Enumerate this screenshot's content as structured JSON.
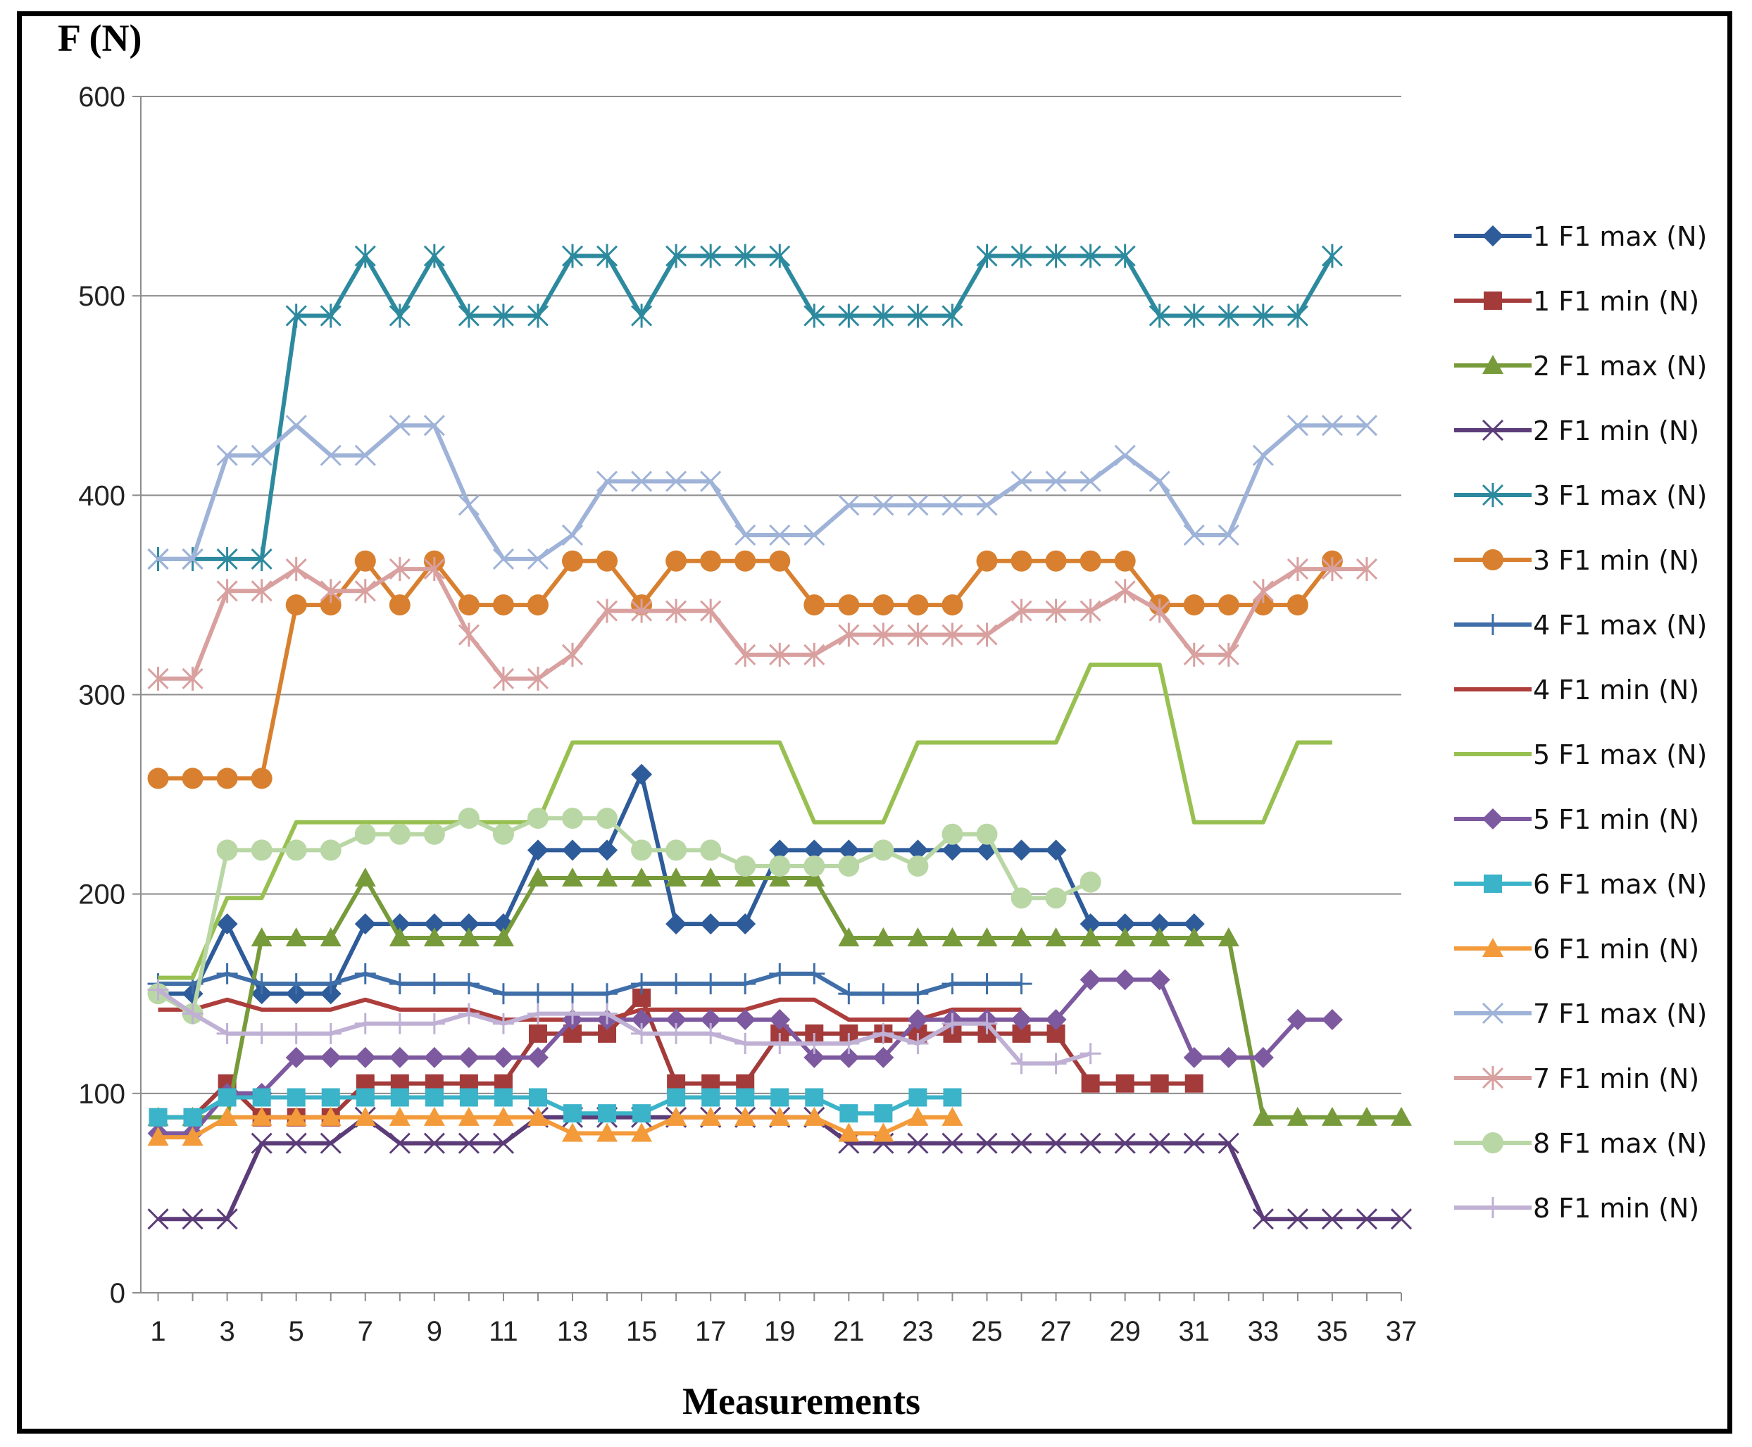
{
  "chart_data": {
    "type": "line",
    "title": "",
    "ylabel": "F (N)",
    "xlabel": "Measurements",
    "ylim": [
      0,
      600
    ],
    "yticks": [
      0,
      100,
      200,
      300,
      400,
      500,
      600
    ],
    "xlim": [
      0.5,
      37
    ],
    "xticks": [
      1,
      3,
      5,
      7,
      9,
      11,
      13,
      15,
      17,
      19,
      21,
      23,
      25,
      27,
      29,
      31,
      33,
      35,
      37
    ],
    "grid": true,
    "legend_position": "right",
    "series": [
      {
        "name": "1 F1 max (N)",
        "color": "#2e5b99",
        "marker": "diamond",
        "values": [
          150,
          150,
          185,
          150,
          150,
          150,
          185,
          185,
          185,
          185,
          185,
          222,
          222,
          222,
          260,
          185,
          185,
          185,
          222,
          222,
          222,
          222,
          222,
          222,
          222,
          222,
          222,
          185,
          185,
          185,
          185
        ]
      },
      {
        "name": "1 F1 min (N)",
        "color": "#a33b3a",
        "marker": "square",
        "values": [
          88,
          88,
          105,
          88,
          88,
          88,
          105,
          105,
          105,
          105,
          105,
          130,
          130,
          130,
          148,
          105,
          105,
          105,
          130,
          130,
          130,
          130,
          130,
          130,
          130,
          130,
          130,
          105,
          105,
          105,
          105
        ]
      },
      {
        "name": "2 F1 max (N)",
        "color": "#779b3a",
        "marker": "triangle",
        "values": [
          88,
          88,
          88,
          178,
          178,
          178,
          208,
          178,
          178,
          178,
          178,
          208,
          208,
          208,
          208,
          208,
          208,
          208,
          208,
          208,
          178,
          178,
          178,
          178,
          178,
          178,
          178,
          178,
          178,
          178,
          178,
          178,
          88,
          88,
          88,
          88,
          88
        ]
      },
      {
        "name": "2 F1 min (N)",
        "color": "#5b3c78",
        "marker": "x",
        "values": [
          37,
          37,
          37,
          75,
          75,
          75,
          88,
          75,
          75,
          75,
          75,
          88,
          88,
          88,
          88,
          88,
          88,
          88,
          88,
          88,
          75,
          75,
          75,
          75,
          75,
          75,
          75,
          75,
          75,
          75,
          75,
          75,
          37,
          37,
          37,
          37,
          37
        ]
      },
      {
        "name": "3 F1 max (N)",
        "color": "#2d8a9e",
        "marker": "asterisk",
        "values": [
          368,
          368,
          368,
          368,
          490,
          490,
          520,
          490,
          520,
          490,
          490,
          490,
          520,
          520,
          490,
          520,
          520,
          520,
          520,
          490,
          490,
          490,
          490,
          490,
          520,
          520,
          520,
          520,
          520,
          490,
          490,
          490,
          490,
          490,
          520
        ]
      },
      {
        "name": "3 F1 min (N)",
        "color": "#d8802f",
        "marker": "circle",
        "values": [
          258,
          258,
          258,
          258,
          345,
          345,
          367,
          345,
          367,
          345,
          345,
          345,
          367,
          367,
          345,
          367,
          367,
          367,
          367,
          345,
          345,
          345,
          345,
          345,
          367,
          367,
          367,
          367,
          367,
          345,
          345,
          345,
          345,
          345,
          367
        ]
      },
      {
        "name": "4 F1 max (N)",
        "color": "#3f6ea8",
        "marker": "plus",
        "values": [
          155,
          155,
          160,
          155,
          155,
          155,
          160,
          155,
          155,
          155,
          150,
          150,
          150,
          150,
          155,
          155,
          155,
          155,
          160,
          160,
          150,
          150,
          150,
          155,
          155,
          155
        ]
      },
      {
        "name": "4 F1 min (N)",
        "color": "#ad3e3c",
        "marker": "dash",
        "values": [
          142,
          142,
          147,
          142,
          142,
          142,
          147,
          142,
          142,
          142,
          137,
          137,
          137,
          137,
          142,
          142,
          142,
          142,
          147,
          147,
          137,
          137,
          137,
          142,
          142,
          142
        ]
      },
      {
        "name": "5 F1 max (N)",
        "color": "#98c050",
        "marker": "dash",
        "values": [
          158,
          158,
          198,
          198,
          236,
          236,
          236,
          236,
          236,
          236,
          236,
          236,
          276,
          276,
          276,
          276,
          276,
          276,
          276,
          236,
          236,
          236,
          276,
          276,
          276,
          276,
          276,
          315,
          315,
          315,
          236,
          236,
          236,
          276,
          276
        ]
      },
      {
        "name": "5 F1 min (N)",
        "color": "#7d59a0",
        "marker": "diamond",
        "values": [
          80,
          80,
          100,
          100,
          118,
          118,
          118,
          118,
          118,
          118,
          118,
          118,
          137,
          137,
          137,
          137,
          137,
          137,
          137,
          118,
          118,
          118,
          137,
          137,
          137,
          137,
          137,
          157,
          157,
          157,
          118,
          118,
          118,
          137,
          137
        ]
      },
      {
        "name": "6 F1 max (N)",
        "color": "#3bb3c9",
        "marker": "square",
        "values": [
          88,
          88,
          98,
          98,
          98,
          98,
          98,
          98,
          98,
          98,
          98,
          98,
          90,
          90,
          90,
          98,
          98,
          98,
          98,
          98,
          90,
          90,
          98,
          98
        ]
      },
      {
        "name": "6 F1 min (N)",
        "color": "#f39a3a",
        "marker": "triangle",
        "values": [
          78,
          78,
          88,
          88,
          88,
          88,
          88,
          88,
          88,
          88,
          88,
          88,
          80,
          80,
          80,
          88,
          88,
          88,
          88,
          88,
          80,
          80,
          88,
          88
        ]
      },
      {
        "name": "7 F1 max (N)",
        "color": "#9fb3d8",
        "marker": "x",
        "values": [
          368,
          368,
          420,
          420,
          435,
          420,
          420,
          435,
          435,
          395,
          368,
          368,
          380,
          407,
          407,
          407,
          407,
          380,
          380,
          380,
          395,
          395,
          395,
          395,
          395,
          407,
          407,
          407,
          420,
          407,
          380,
          380,
          420,
          435,
          435,
          435
        ]
      },
      {
        "name": "7 F1 min (N)",
        "color": "#d9a0a0",
        "marker": "asterisk",
        "values": [
          308,
          308,
          352,
          352,
          363,
          352,
          352,
          363,
          363,
          330,
          308,
          308,
          320,
          342,
          342,
          342,
          342,
          320,
          320,
          320,
          330,
          330,
          330,
          330,
          330,
          342,
          342,
          342,
          352,
          342,
          320,
          320,
          352,
          363,
          363,
          363
        ]
      },
      {
        "name": "8 F1 max (N)",
        "color": "#b9d7a5",
        "marker": "circle",
        "values": [
          150,
          140,
          222,
          222,
          222,
          222,
          230,
          230,
          230,
          238,
          230,
          238,
          238,
          238,
          222,
          222,
          222,
          214,
          214,
          214,
          214,
          222,
          214,
          230,
          230,
          198,
          198,
          206
        ]
      },
      {
        "name": "8 F1 min (N)",
        "color": "#bfb0d4",
        "marker": "plus",
        "values": [
          152,
          140,
          130,
          130,
          130,
          130,
          135,
          135,
          135,
          140,
          135,
          140,
          140,
          140,
          130,
          130,
          130,
          125,
          125,
          125,
          125,
          130,
          125,
          135,
          135,
          115,
          115,
          120
        ]
      }
    ]
  }
}
